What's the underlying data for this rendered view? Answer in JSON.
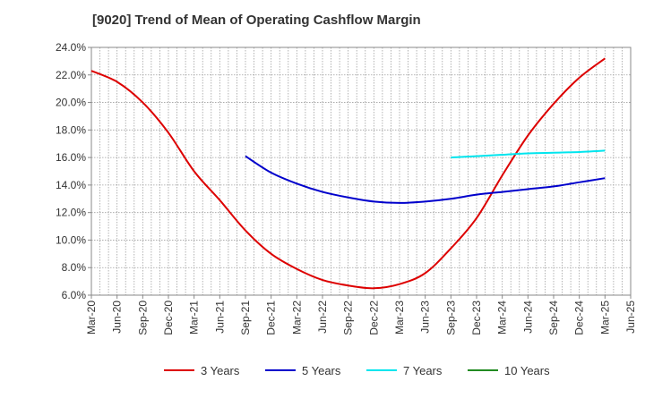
{
  "chart_data": {
    "type": "line",
    "title": "[9020]  Trend of Mean of Operating Cashflow Margin",
    "xlabel": "",
    "ylabel": "",
    "ylim": [
      6.0,
      24.0
    ],
    "y_ticks": [
      6.0,
      8.0,
      10.0,
      12.0,
      14.0,
      16.0,
      18.0,
      20.0,
      22.0,
      24.0
    ],
    "y_tick_format": "percent_1dp",
    "x_ticks": [
      "Mar-20",
      "Jun-20",
      "Sep-20",
      "Dec-20",
      "Mar-21",
      "Jun-21",
      "Sep-21",
      "Dec-21",
      "Mar-22",
      "Jun-22",
      "Sep-22",
      "Dec-22",
      "Mar-23",
      "Jun-23",
      "Sep-23",
      "Dec-23",
      "Mar-24",
      "Jun-24",
      "Sep-24",
      "Dec-24",
      "Mar-25",
      "Jun-25"
    ],
    "grid": true,
    "legend_position": "bottom",
    "series": [
      {
        "name": "3 Years",
        "color": "#dd0000",
        "x": [
          "Mar-20",
          "Jun-20",
          "Sep-20",
          "Dec-20",
          "Mar-21",
          "Jun-21",
          "Sep-21",
          "Dec-21",
          "Mar-22",
          "Jun-22",
          "Sep-22",
          "Dec-22",
          "Mar-23",
          "Jun-23",
          "Sep-23",
          "Dec-23",
          "Mar-24",
          "Jun-24",
          "Sep-24",
          "Dec-24",
          "Mar-25"
        ],
        "values": [
          22.3,
          21.5,
          20.0,
          17.8,
          15.0,
          12.9,
          10.7,
          9.0,
          7.9,
          7.1,
          6.7,
          6.5,
          6.8,
          7.6,
          9.4,
          11.6,
          14.7,
          17.6,
          19.9,
          21.8,
          23.2
        ]
      },
      {
        "name": "5 Years",
        "color": "#0000cc",
        "x": [
          "Sep-21",
          "Dec-21",
          "Mar-22",
          "Jun-22",
          "Sep-22",
          "Dec-22",
          "Mar-23",
          "Jun-23",
          "Sep-23",
          "Dec-23",
          "Mar-24",
          "Jun-24",
          "Sep-24",
          "Dec-24",
          "Mar-25"
        ],
        "values": [
          16.1,
          14.9,
          14.1,
          13.5,
          13.1,
          12.8,
          12.7,
          12.8,
          13.0,
          13.3,
          13.5,
          13.7,
          13.9,
          14.2,
          14.5
        ]
      },
      {
        "name": "7 Years",
        "color": "#00e5ee",
        "x": [
          "Sep-23",
          "Dec-23",
          "Mar-24",
          "Jun-24",
          "Sep-24",
          "Dec-24",
          "Mar-25"
        ],
        "values": [
          16.0,
          16.1,
          16.2,
          16.3,
          16.35,
          16.4,
          16.5
        ]
      },
      {
        "name": "10 Years",
        "color": "#228b22",
        "x": [],
        "values": []
      }
    ]
  }
}
